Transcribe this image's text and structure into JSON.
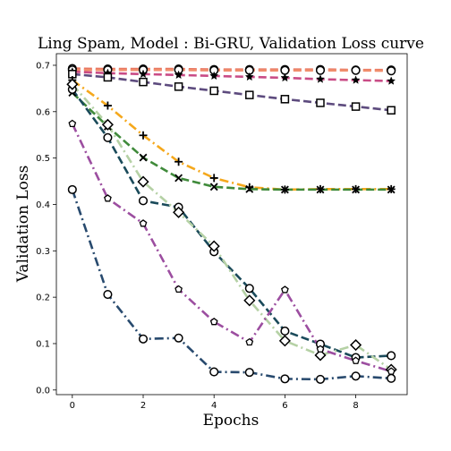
{
  "chart_data": {
    "type": "line",
    "title": "Ling Spam, Model : Bi-GRU, Validation Loss curve",
    "xlabel": "Epochs",
    "ylabel": "Validation Loss",
    "xlim": [
      -0.45,
      9.45
    ],
    "ylim": [
      -0.01,
      0.725
    ],
    "xticks": [
      0,
      2,
      4,
      6,
      8
    ],
    "yticks": [
      0.0,
      0.1,
      0.2,
      0.3,
      0.4,
      0.5,
      0.6,
      0.7
    ],
    "grid": false,
    "legend": "none",
    "x": [
      0,
      1,
      2,
      3,
      4,
      5,
      6,
      7,
      8,
      9
    ],
    "series": [
      {
        "color": "#e8735f",
        "dash": "9,4",
        "marker": "circle",
        "values": [
          0.693,
          0.692,
          0.692,
          0.692,
          0.691,
          0.691,
          0.691,
          0.691,
          0.69,
          0.69
        ]
      },
      {
        "color": "#f08d6c",
        "dash": "9,4",
        "marker": "circle",
        "values": [
          0.69,
          0.69,
          0.69,
          0.69,
          0.689,
          0.689,
          0.689,
          0.689,
          0.689,
          0.688
        ]
      },
      {
        "color": "#c94c86",
        "dash": "9,4",
        "marker": "star",
        "values": [
          0.686,
          0.683,
          0.681,
          0.679,
          0.677,
          0.675,
          0.673,
          0.67,
          0.668,
          0.666
        ]
      },
      {
        "color": "#5d4b7e",
        "dash": "9,4",
        "marker": "square",
        "values": [
          0.681,
          0.674,
          0.664,
          0.654,
          0.645,
          0.636,
          0.627,
          0.619,
          0.611,
          0.603
        ]
      },
      {
        "color": "#f5a81c",
        "dash": "10,4,2,4",
        "marker": "plus",
        "values": [
          0.668,
          0.613,
          0.549,
          0.492,
          0.457,
          0.437,
          0.432,
          0.433,
          0.433,
          0.433
        ]
      },
      {
        "color": "#3f8a3a",
        "dash": "9,4",
        "marker": "x",
        "values": [
          0.641,
          0.568,
          0.501,
          0.457,
          0.438,
          0.433,
          0.432,
          0.432,
          0.432,
          0.432
        ]
      },
      {
        "color": "#1a4a5a",
        "dash": "9,4",
        "marker": "circle",
        "values": [
          0.648,
          0.544,
          0.408,
          0.394,
          0.298,
          0.219,
          0.127,
          0.099,
          0.07,
          0.074
        ]
      },
      {
        "color": "#b5d1a5",
        "dash": "10,4,2,4",
        "marker": "diamond",
        "values": [
          0.659,
          0.572,
          0.449,
          0.383,
          0.31,
          0.193,
          0.106,
          0.075,
          0.097,
          0.044
        ]
      },
      {
        "color": "#9c4ea0",
        "dash": "10,4,2,4",
        "marker": "pentagon",
        "values": [
          0.574,
          0.413,
          0.359,
          0.217,
          0.147,
          0.103,
          0.216,
          0.088,
          0.063,
          0.04
        ]
      },
      {
        "color": "#284a6e",
        "dash": "10,4,2,4",
        "marker": "circle",
        "values": [
          0.432,
          0.206,
          0.11,
          0.112,
          0.039,
          0.038,
          0.024,
          0.023,
          0.03,
          0.025
        ]
      }
    ]
  }
}
